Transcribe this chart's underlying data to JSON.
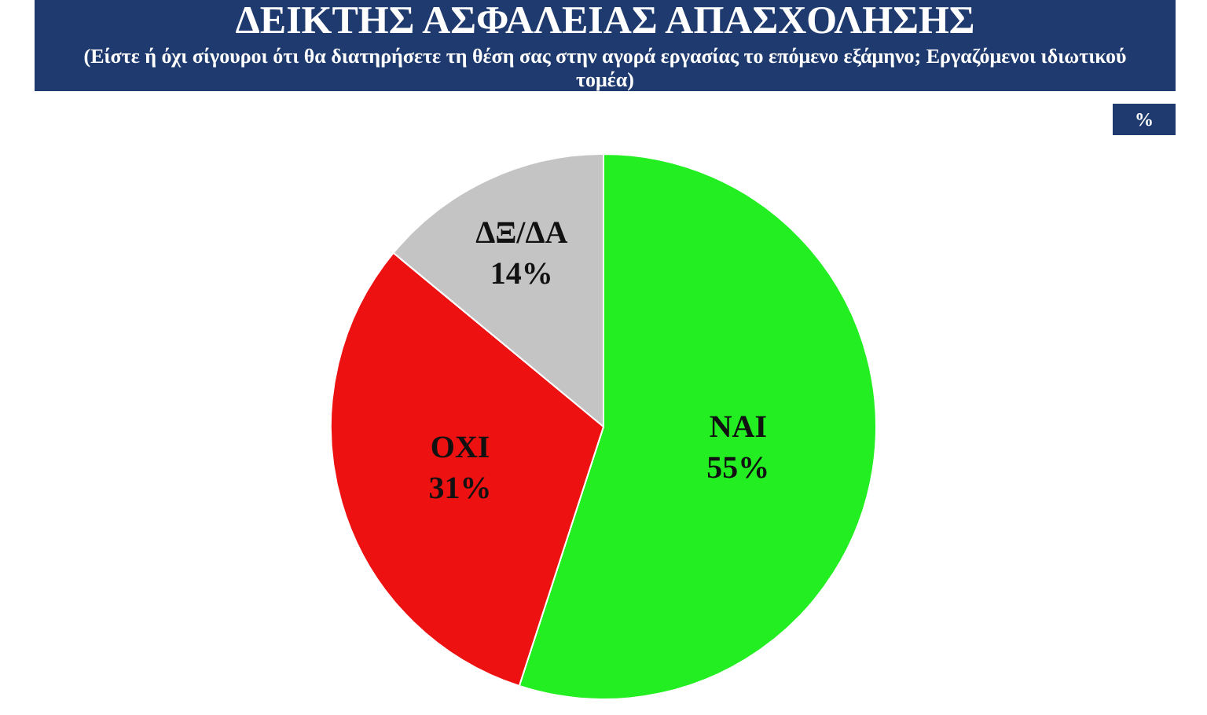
{
  "chart_data": {
    "type": "pie",
    "title": "ΔΕΙΚΤΗΣ ΑΣΦΑΛΕΙΑΣ ΑΠΑΣΧΟΛΗΣΗΣ",
    "subtitle": "(Είστε ή όχι σίγουροι ότι θα διατηρήσετε τη θέση σας στην αγορά εργασίας το επόμενο εξάμηνο; Εργαζόμενοι ιδιωτικού τομέα)",
    "annotations": [
      "%"
    ],
    "categories": [
      "ΝΑΙ",
      "ΟΧΙ",
      "ΔΞ/ΔΑ"
    ],
    "values": [
      55,
      31,
      14
    ],
    "value_labels": [
      "55%",
      "31%",
      "14%"
    ],
    "colors": [
      "#22ee22",
      "#ee1111",
      "#c4c4c4"
    ],
    "legend": false
  }
}
